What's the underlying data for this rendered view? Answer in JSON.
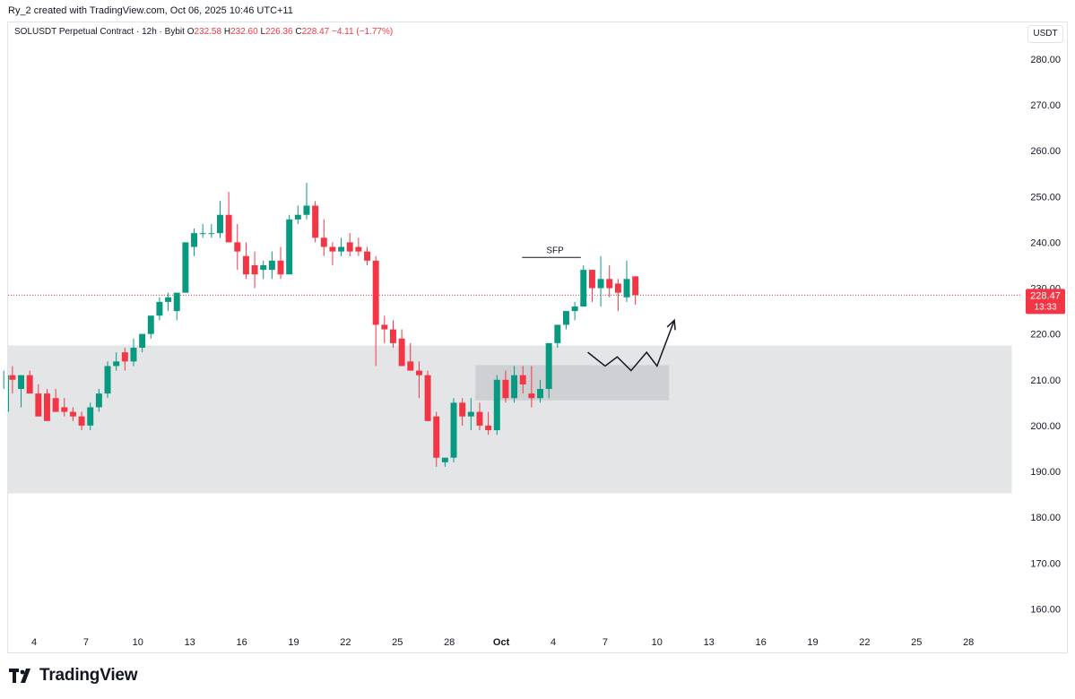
{
  "header": {
    "created_text": "Ry_2 created with TradingView.com, Oct 06, 2025 10:46 UTC+11"
  },
  "legend": {
    "symbol": "SOLUSDT Perpetual Contract · 12h · Bybit",
    "o_label": "O",
    "o_value": "232.58",
    "h_label": "H",
    "h_value": "232.60",
    "l_label": "L",
    "l_value": "226.36",
    "c_label": "C",
    "c_value": "228.47",
    "change": "−4.11 (−1.77%)"
  },
  "currency_button": "USDT",
  "price_tag": {
    "price": "228.47",
    "countdown": "13:33"
  },
  "brand": "TradingView",
  "colors": {
    "up": "#089981",
    "down": "#f23645",
    "zone": "#e4e5e7",
    "inner_zone": "#cfd0d3",
    "axis_text": "#131722",
    "price_line": "#f23645"
  },
  "chart_data": {
    "type": "candlestick",
    "ylim": [
      155,
      288
    ],
    "yticks": [
      "280.00",
      "270.00",
      "260.00",
      "250.00",
      "240.00",
      "230.00",
      "220.00",
      "210.00",
      "200.00",
      "190.00",
      "180.00",
      "170.00",
      "160.00"
    ],
    "ytick_values": [
      280,
      270,
      260,
      250,
      240,
      230,
      220,
      210,
      200,
      190,
      180,
      170,
      160
    ],
    "xticks": [
      "4",
      "7",
      "10",
      "13",
      "16",
      "19",
      "22",
      "25",
      "28",
      "Oct",
      "4",
      "7",
      "10",
      "13",
      "16",
      "19",
      "22",
      "25",
      "28"
    ],
    "xtick_days": [
      4,
      7,
      10,
      13,
      16,
      19,
      22,
      25,
      28,
      31,
      34,
      37,
      40,
      43,
      46,
      49,
      52,
      55,
      58
    ],
    "x_start_day": 1.75,
    "candles": [
      {
        "o": 203,
        "h": 214,
        "l": 197,
        "c": 210
      },
      {
        "o": 210,
        "h": 212,
        "l": 208,
        "c": 211
      },
      {
        "o": 211,
        "h": 213,
        "l": 207,
        "c": 210
      },
      {
        "o": 208,
        "h": 211,
        "l": 204,
        "c": 211
      },
      {
        "o": 211,
        "h": 212,
        "l": 207,
        "c": 207
      },
      {
        "o": 207,
        "h": 209,
        "l": 202,
        "c": 202
      },
      {
        "o": 207,
        "h": 208,
        "l": 201,
        "c": 201
      },
      {
        "o": 206,
        "h": 208,
        "l": 203,
        "c": 203
      },
      {
        "o": 204,
        "h": 206,
        "l": 202,
        "c": 203
      },
      {
        "o": 203,
        "h": 204,
        "l": 201,
        "c": 202
      },
      {
        "o": 202,
        "h": 203,
        "l": 199,
        "c": 200
      },
      {
        "o": 200,
        "h": 205,
        "l": 199,
        "c": 204
      },
      {
        "o": 204,
        "h": 208,
        "l": 203,
        "c": 207
      },
      {
        "o": 207,
        "h": 214,
        "l": 206,
        "c": 213
      },
      {
        "o": 213,
        "h": 216,
        "l": 212,
        "c": 214
      },
      {
        "o": 216,
        "h": 217,
        "l": 212,
        "c": 214
      },
      {
        "o": 214,
        "h": 219,
        "l": 213,
        "c": 217
      },
      {
        "o": 217,
        "h": 220,
        "l": 216,
        "c": 220
      },
      {
        "o": 220,
        "h": 224,
        "l": 219,
        "c": 224
      },
      {
        "o": 224,
        "h": 228,
        "l": 223,
        "c": 227
      },
      {
        "o": 227,
        "h": 229,
        "l": 225,
        "c": 228
      },
      {
        "o": 225,
        "h": 229,
        "l": 223,
        "c": 229
      },
      {
        "o": 229,
        "h": 240,
        "l": 229,
        "c": 240
      },
      {
        "o": 239,
        "h": 243,
        "l": 237,
        "c": 242
      },
      {
        "o": 242,
        "h": 244,
        "l": 241,
        "c": 242
      },
      {
        "o": 242,
        "h": 244,
        "l": 241,
        "c": 242
      },
      {
        "o": 242,
        "h": 249,
        "l": 241,
        "c": 246
      },
      {
        "o": 246,
        "h": 251,
        "l": 240,
        "c": 240
      },
      {
        "o": 240,
        "h": 244,
        "l": 234,
        "c": 238
      },
      {
        "o": 237,
        "h": 240,
        "l": 232,
        "c": 233
      },
      {
        "o": 235,
        "h": 238,
        "l": 230,
        "c": 233
      },
      {
        "o": 234,
        "h": 236,
        "l": 232,
        "c": 235
      },
      {
        "o": 234,
        "h": 238,
        "l": 232,
        "c": 236
      },
      {
        "o": 236,
        "h": 239,
        "l": 232,
        "c": 233
      },
      {
        "o": 233,
        "h": 246,
        "l": 233,
        "c": 245
      },
      {
        "o": 245,
        "h": 248,
        "l": 244,
        "c": 246
      },
      {
        "o": 246,
        "h": 253,
        "l": 245,
        "c": 248
      },
      {
        "o": 248,
        "h": 249,
        "l": 240,
        "c": 241
      },
      {
        "o": 241,
        "h": 245,
        "l": 237,
        "c": 239
      },
      {
        "o": 239,
        "h": 240,
        "l": 235,
        "c": 238
      },
      {
        "o": 238,
        "h": 241,
        "l": 237,
        "c": 239
      },
      {
        "o": 240,
        "h": 242,
        "l": 237,
        "c": 238
      },
      {
        "o": 239,
        "h": 241,
        "l": 237,
        "c": 238
      },
      {
        "o": 238,
        "h": 239,
        "l": 235,
        "c": 236
      },
      {
        "o": 236,
        "h": 237,
        "l": 213,
        "c": 222
      },
      {
        "o": 222,
        "h": 224,
        "l": 218,
        "c": 221
      },
      {
        "o": 221,
        "h": 223,
        "l": 217,
        "c": 218
      },
      {
        "o": 219,
        "h": 221,
        "l": 213,
        "c": 213
      },
      {
        "o": 214,
        "h": 218,
        "l": 212,
        "c": 212
      },
      {
        "o": 212,
        "h": 214,
        "l": 206,
        "c": 211
      },
      {
        "o": 211,
        "h": 212,
        "l": 201,
        "c": 201
      },
      {
        "o": 202,
        "h": 203,
        "l": 191,
        "c": 193
      },
      {
        "o": 192,
        "h": 193,
        "l": 191,
        "c": 193
      },
      {
        "o": 193,
        "h": 206,
        "l": 192,
        "c": 205
      },
      {
        "o": 205,
        "h": 206,
        "l": 200,
        "c": 202
      },
      {
        "o": 202,
        "h": 206,
        "l": 199,
        "c": 203
      },
      {
        "o": 203,
        "h": 205,
        "l": 199,
        "c": 200
      },
      {
        "o": 200,
        "h": 203,
        "l": 198,
        "c": 199
      },
      {
        "o": 199,
        "h": 211,
        "l": 198,
        "c": 210
      },
      {
        "o": 210,
        "h": 212,
        "l": 205,
        "c": 206
      },
      {
        "o": 206,
        "h": 213,
        "l": 205,
        "c": 211
      },
      {
        "o": 211,
        "h": 213,
        "l": 207,
        "c": 209
      },
      {
        "o": 207,
        "h": 213,
        "l": 204,
        "c": 206
      },
      {
        "o": 206,
        "h": 210,
        "l": 205,
        "c": 208
      },
      {
        "o": 208,
        "h": 218,
        "l": 206,
        "c": 218
      },
      {
        "o": 218,
        "h": 222,
        "l": 217,
        "c": 222
      },
      {
        "o": 222,
        "h": 225,
        "l": 221,
        "c": 225
      },
      {
        "o": 225,
        "h": 227,
        "l": 223,
        "c": 226
      },
      {
        "o": 226,
        "h": 235,
        "l": 226,
        "c": 234
      },
      {
        "o": 234,
        "h": 234,
        "l": 227,
        "c": 230
      },
      {
        "o": 230,
        "h": 237,
        "l": 226,
        "c": 232
      },
      {
        "o": 232,
        "h": 235,
        "l": 228,
        "c": 230
      },
      {
        "o": 231,
        "h": 232,
        "l": 225,
        "c": 229
      },
      {
        "o": 228,
        "h": 236,
        "l": 227,
        "c": 232
      },
      {
        "o": 232.58,
        "h": 232.6,
        "l": 226.36,
        "c": 228.47
      }
    ],
    "current_price": 228.47,
    "zones": [
      {
        "x0_day": 1.75,
        "x1_day": 60.5,
        "y0": 185.2,
        "y1": 217.5
      },
      {
        "x0_day": 29.5,
        "x1_day": 40.7,
        "y0": 205.5,
        "y1": 213.2
      }
    ],
    "annotations": [
      {
        "type": "line",
        "text": "SFP",
        "x0_day": 32.2,
        "x1_day": 35.6,
        "y": 236.7
      }
    ],
    "projection_path": [
      [
        36.0,
        216
      ],
      [
        37.0,
        213
      ],
      [
        37.7,
        215
      ],
      [
        38.5,
        212
      ],
      [
        39.4,
        216
      ],
      [
        40.0,
        213
      ],
      [
        41.0,
        223
      ]
    ]
  }
}
